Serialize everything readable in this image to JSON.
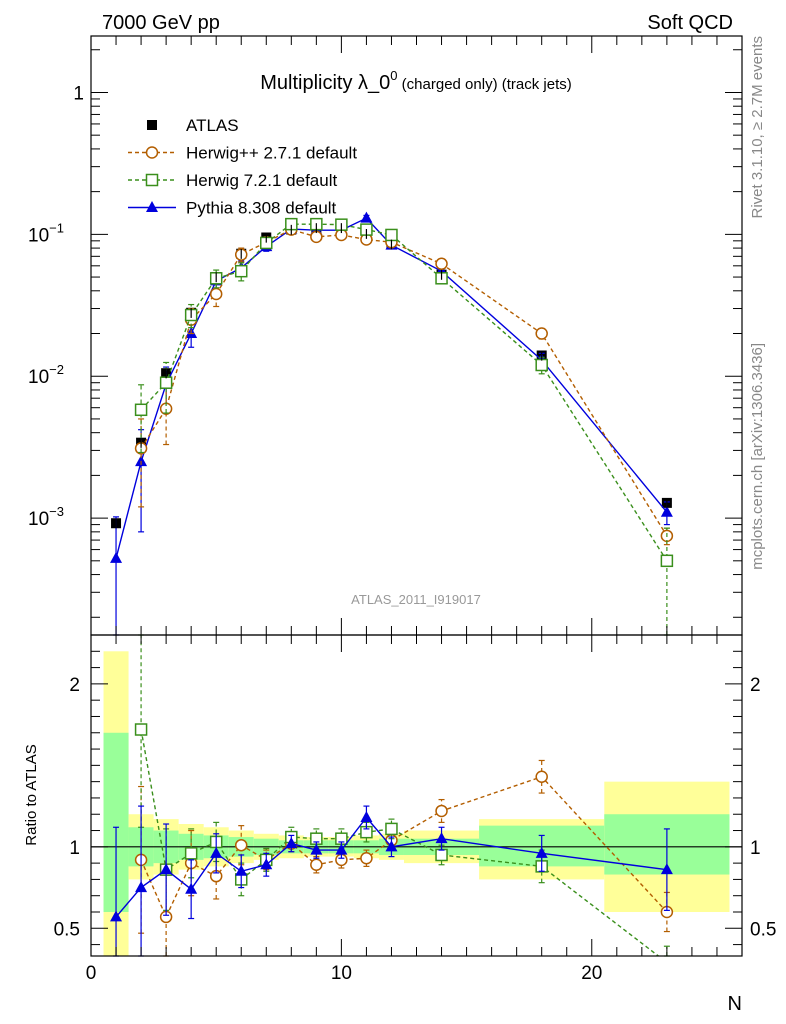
{
  "header": {
    "left": "7000 GeV pp",
    "right": "Soft QCD"
  },
  "side_labels": {
    "top": "Rivet 3.1.10, ≥ 2.7M events",
    "bottom": "mcplots.cern.ch [arXiv:1306.3436]"
  },
  "watermark": "ATLAS_2011_I919017",
  "chart_data": [
    {
      "panel": "main",
      "type": "scatter",
      "title": "Multiplicity λ_0",
      "title_sup": "0",
      "title_suffix": " (charged only) (track jets)",
      "xlabel": "N",
      "ylabel": "",
      "xlim": [
        0,
        26
      ],
      "ylim": [
        0.00015,
        2.5
      ],
      "yscale": "log",
      "yticks": [
        {
          "value": 0.001,
          "base": "10",
          "exp": "−3"
        },
        {
          "value": 0.01,
          "base": "10",
          "exp": "−2"
        },
        {
          "value": 0.1,
          "base": "10",
          "exp": "−1"
        },
        {
          "value": 1,
          "base": "1",
          "exp": ""
        }
      ],
      "legend_position": "top-left",
      "series": [
        {
          "name": "ATLAS",
          "style": "data",
          "color": "#000000",
          "x": [
            1,
            2,
            3,
            4,
            5,
            6,
            7,
            8,
            9,
            10,
            11,
            12,
            14,
            18,
            23
          ],
          "y": [
            0.00092,
            0.0034,
            0.0105,
            0.028,
            0.05,
            0.073,
            0.095,
            0.108,
            0.111,
            0.111,
            0.101,
            0.085,
            0.052,
            0.014,
            0.00128
          ]
        },
        {
          "name": "Herwig++ 2.7.1 default",
          "style": "open-circle-dashed",
          "color": "#b35e00",
          "x": [
            2,
            3,
            4,
            5,
            6,
            7,
            8,
            9,
            10,
            11,
            12,
            14,
            18,
            23
          ],
          "y": [
            0.0031,
            0.0059,
            0.025,
            0.038,
            0.072,
            0.088,
            0.108,
            0.096,
            0.099,
            0.092,
            0.088,
            0.062,
            0.02,
            0.00075
          ],
          "err": [
            0.0019,
            0.0026,
            0.005,
            0.007,
            0.008,
            0.005,
            0.005,
            0.005,
            0.005,
            0.005,
            0.005,
            0.003,
            0.0017,
            0.0001
          ]
        },
        {
          "name": "Herwig 7.2.1 default",
          "style": "open-square-dashed",
          "color": "#3a8f1c",
          "x": [
            2,
            3,
            4,
            5,
            6,
            7,
            8,
            9,
            10,
            11,
            12,
            14,
            18,
            23
          ],
          "y": [
            0.0058,
            0.009,
            0.027,
            0.049,
            0.055,
            0.087,
            0.118,
            0.118,
            0.117,
            0.108,
            0.099,
            0.049,
            0.012,
            0.0005
          ],
          "err": [
            0.0029,
            0.0035,
            0.005,
            0.007,
            0.008,
            0.006,
            0.006,
            0.006,
            0.006,
            0.006,
            0.005,
            0.003,
            0.0016,
            0.00035
          ]
        },
        {
          "name": "Pythia 8.308 default",
          "style": "filled-triangle-solid",
          "color": "#0000dd",
          "x": [
            1,
            2,
            3,
            4,
            5,
            6,
            7,
            8,
            9,
            10,
            11,
            12,
            14,
            18,
            23
          ],
          "y": [
            0.00052,
            0.0025,
            0.0088,
            0.02,
            0.047,
            0.058,
            0.082,
            0.109,
            0.107,
            0.107,
            0.13,
            0.084,
            0.055,
            0.013,
            0.0011
          ],
          "err": [
            0.0005,
            0.0017,
            0.0028,
            0.004,
            0.006,
            0.007,
            0.006,
            0.005,
            0.005,
            0.005,
            0.006,
            0.005,
            0.004,
            0.0015,
            0.0002
          ]
        }
      ]
    },
    {
      "panel": "ratio",
      "type": "scatter",
      "xlabel": "N",
      "ylabel": "Ratio to ATLAS",
      "xlim": [
        0,
        26
      ],
      "ylim": [
        0.33,
        2.3
      ],
      "xticks": [
        0,
        10,
        20
      ],
      "yticks": [
        0.5,
        1,
        2
      ],
      "reference": 1,
      "bands": {
        "x_edges": [
          0.5,
          1.5,
          2.5,
          3.5,
          4.5,
          5.5,
          6.5,
          7.5,
          8.5,
          9.5,
          10.5,
          11.5,
          12.5,
          15.5,
          20.5,
          25.5
        ],
        "outer_low": [
          0.2,
          0.8,
          0.83,
          0.86,
          0.88,
          0.9,
          0.92,
          0.93,
          0.94,
          0.94,
          0.93,
          0.92,
          0.9,
          0.8,
          0.6,
          0.6
        ],
        "outer_high": [
          2.2,
          1.2,
          1.17,
          1.14,
          1.12,
          1.1,
          1.08,
          1.07,
          1.06,
          1.06,
          1.07,
          1.08,
          1.1,
          1.17,
          1.4,
          1.4
        ],
        "inner_low": [
          0.6,
          0.88,
          0.9,
          0.92,
          0.93,
          0.94,
          0.95,
          0.96,
          0.96,
          0.96,
          0.96,
          0.95,
          0.95,
          0.88,
          0.83,
          0.83
        ],
        "inner_high": [
          1.7,
          1.12,
          1.1,
          1.08,
          1.07,
          1.06,
          1.05,
          1.04,
          1.04,
          1.04,
          1.04,
          1.05,
          1.05,
          1.13,
          1.2,
          1.2
        ],
        "outer_color": "#ffff99",
        "inner_color": "#99ff99"
      },
      "series": [
        {
          "name": "Herwig++ 2.7.1 default",
          "color": "#b35e00",
          "x": [
            2,
            3,
            4,
            5,
            6,
            7,
            8,
            9,
            10,
            11,
            12,
            14,
            18,
            23
          ],
          "y": [
            0.92,
            0.57,
            0.9,
            0.82,
            1.01,
            0.92,
            1.02,
            0.89,
            0.92,
            0.93,
            1.04,
            1.22,
            1.43,
            0.6
          ],
          "err": [
            0.45,
            0.3,
            0.2,
            0.14,
            0.12,
            0.06,
            0.05,
            0.05,
            0.05,
            0.05,
            0.06,
            0.07,
            0.1,
            0.12
          ]
        },
        {
          "name": "Herwig 7.2.1 default",
          "color": "#3a8f1c",
          "x": [
            2,
            3,
            4,
            5,
            6,
            7,
            8,
            9,
            10,
            11,
            12,
            14,
            18,
            23
          ],
          "y": [
            1.72,
            0.86,
            0.96,
            1.03,
            0.8,
            0.92,
            1.06,
            1.05,
            1.05,
            1.09,
            1.11,
            0.95,
            0.88,
            0.29
          ],
          "err": [
            0.6,
            0.25,
            0.15,
            0.12,
            0.1,
            0.07,
            0.06,
            0.06,
            0.06,
            0.06,
            0.06,
            0.06,
            0.1,
            0.1
          ]
        },
        {
          "name": "Pythia 8.308 default",
          "color": "#0000dd",
          "x": [
            1,
            2,
            3,
            4,
            5,
            6,
            7,
            8,
            9,
            10,
            11,
            12,
            14,
            18,
            23
          ],
          "y": [
            0.57,
            0.75,
            0.86,
            0.74,
            0.96,
            0.85,
            0.89,
            1.02,
            0.98,
            0.98,
            1.18,
            1.0,
            1.05,
            0.96,
            0.86
          ],
          "err": [
            0.55,
            0.5,
            0.28,
            0.18,
            0.12,
            0.1,
            0.07,
            0.05,
            0.05,
            0.05,
            0.07,
            0.06,
            0.07,
            0.11,
            0.25
          ]
        }
      ]
    }
  ]
}
